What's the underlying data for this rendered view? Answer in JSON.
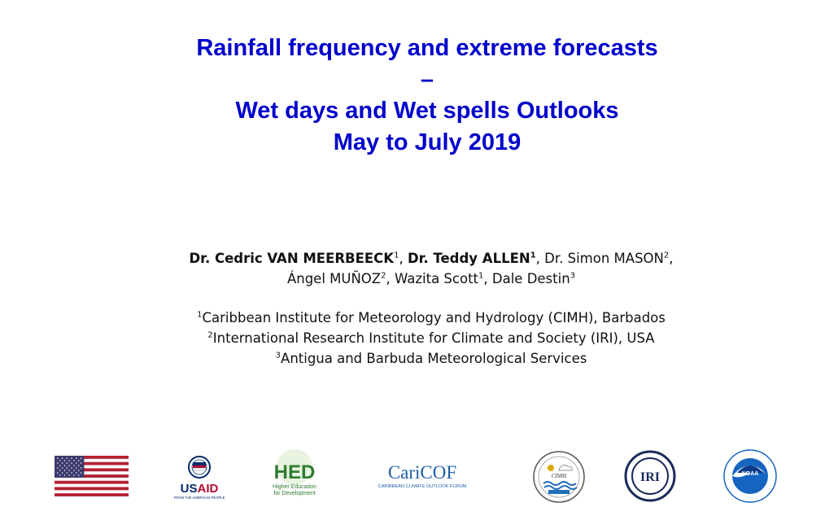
{
  "title": {
    "line1": "Rainfall frequency and extreme forecasts",
    "line2": "–",
    "line3": "Wet days and Wet spells Outlooks",
    "line4": "May to July 2019"
  },
  "authors": {
    "a1_name": "Dr. Cedric VAN MEERBEECK",
    "a1_sup": "1",
    "a2_name": "Dr. Teddy ALLEN",
    "a2_sup": "1",
    "a3_name": "Dr. Simon MASON",
    "a3_sup": "2",
    "a4_name": "Ángel MUÑOZ",
    "a4_sup": "2",
    "a5_name": "Wazita Scott",
    "a5_sup": "1",
    "a6_name": "Dale Destin",
    "a6_sup": "3"
  },
  "affiliations": [
    {
      "sup": "1",
      "text": "Caribbean Institute for Meteorology and Hydrology (CIMH), Barbados"
    },
    {
      "sup": "2",
      "text": "International Research Institute for Climate and Society (IRI), USA"
    },
    {
      "sup": "3",
      "text": "Antigua and Barbuda Meteorological Services"
    }
  ],
  "logos": {
    "usaid": {
      "name": "USAID",
      "tagline": "FROM THE AMERICAN PEOPLE"
    },
    "hed": {
      "name": "HED",
      "tagline1": "Higher Education",
      "tagline2": "for Development"
    },
    "caricof": {
      "name": "CariCOF",
      "tagline": "CARIBBEAN CLIMATE OUTLOOK FORUM"
    },
    "cimh": {
      "name": "CIMH"
    },
    "iri": {
      "name": "IRI"
    },
    "noaa": {
      "name": "NOAA"
    }
  },
  "colors": {
    "title": "#0000cc",
    "usaid_blue": "#002a6c",
    "usaid_red": "#ba0c2f",
    "hed_green": "#2e7d32",
    "caricof_blue": "#1f5fa8",
    "iri_navy": "#1a2a5a",
    "noaa_blue": "#1565c0"
  }
}
